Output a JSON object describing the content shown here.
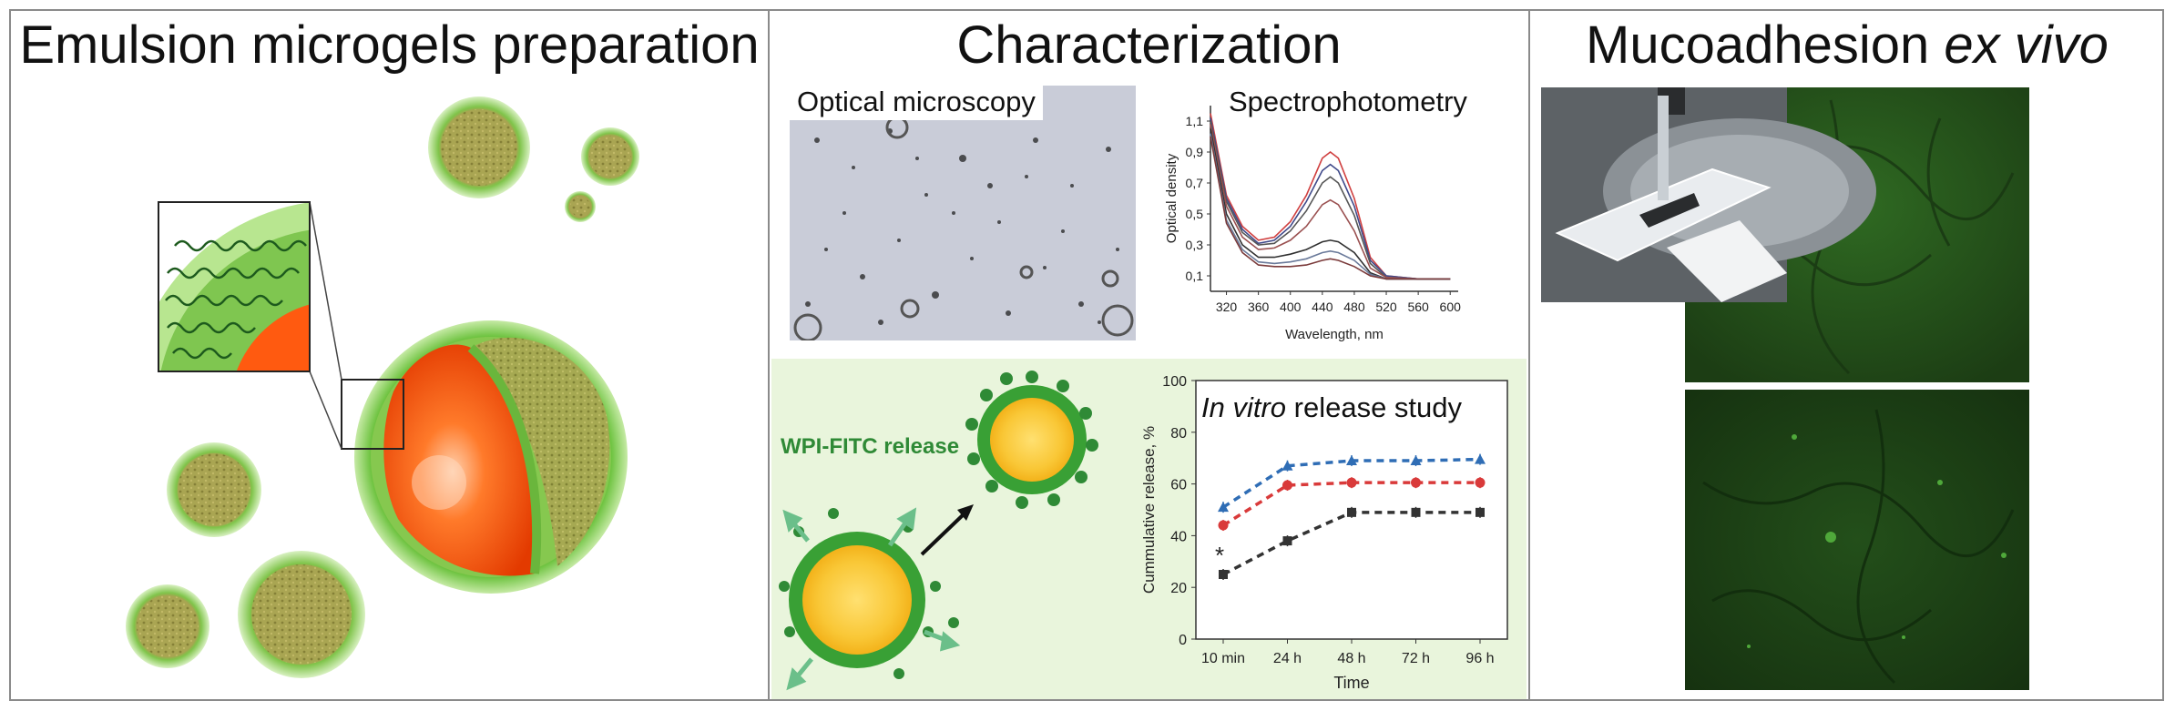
{
  "panels": {
    "left": {
      "title": "Emulsion microgels preparation"
    },
    "middle": {
      "title": "Characterization",
      "microscopy_label": "Optical microscopy",
      "spectro_label": "Spectrophotometry",
      "wpi_label": "WPI-FITC release",
      "release_title_italic": "In vitro",
      "release_title_rest": " release study"
    },
    "right": {
      "title_main": "Mucoadhesion ",
      "title_italic": "ex vivo"
    }
  },
  "chart_data": [
    {
      "type": "line",
      "title": "Spectrophotometry",
      "xlabel": "Wavelength, nm",
      "ylabel": "Optical density",
      "xticks": [
        "320",
        "360",
        "400",
        "440",
        "480",
        "520",
        "560",
        "600"
      ],
      "yticks": [
        "0,1",
        "0,3",
        "0,5",
        "0,7",
        "0,9",
        "1,1"
      ],
      "xlim": [
        300,
        610
      ],
      "ylim": [
        0,
        1.2
      ],
      "series": [
        {
          "color": "#d04040",
          "x": [
            300,
            320,
            340,
            360,
            380,
            400,
            420,
            440,
            450,
            460,
            480,
            500,
            520,
            560,
            600
          ],
          "y": [
            1.15,
            0.62,
            0.42,
            0.33,
            0.35,
            0.45,
            0.62,
            0.86,
            0.9,
            0.86,
            0.6,
            0.22,
            0.1,
            0.08,
            0.08
          ]
        },
        {
          "color": "#404a8a",
          "x": [
            300,
            320,
            340,
            360,
            380,
            400,
            420,
            440,
            450,
            460,
            480,
            500,
            520,
            560,
            600
          ],
          "y": [
            1.12,
            0.6,
            0.4,
            0.31,
            0.33,
            0.42,
            0.58,
            0.78,
            0.82,
            0.78,
            0.55,
            0.2,
            0.1,
            0.08,
            0.08
          ]
        },
        {
          "color": "#555555",
          "x": [
            300,
            320,
            340,
            360,
            380,
            400,
            420,
            440,
            450,
            460,
            480,
            500,
            520,
            560,
            600
          ],
          "y": [
            1.1,
            0.58,
            0.38,
            0.3,
            0.31,
            0.39,
            0.52,
            0.7,
            0.74,
            0.7,
            0.49,
            0.18,
            0.09,
            0.08,
            0.08
          ]
        },
        {
          "color": "#9a5050",
          "x": [
            300,
            320,
            340,
            360,
            380,
            400,
            420,
            440,
            450,
            460,
            480,
            500,
            520,
            560,
            600
          ],
          "y": [
            1.08,
            0.55,
            0.35,
            0.27,
            0.28,
            0.33,
            0.42,
            0.56,
            0.59,
            0.56,
            0.39,
            0.15,
            0.09,
            0.08,
            0.08
          ]
        },
        {
          "color": "#303030",
          "x": [
            300,
            320,
            340,
            360,
            380,
            400,
            420,
            440,
            450,
            460,
            480,
            500,
            520,
            560,
            600
          ],
          "y": [
            1.05,
            0.5,
            0.3,
            0.22,
            0.22,
            0.24,
            0.27,
            0.32,
            0.33,
            0.32,
            0.25,
            0.12,
            0.08,
            0.08,
            0.08
          ]
        },
        {
          "color": "#6a7a9a",
          "x": [
            300,
            320,
            340,
            360,
            380,
            400,
            420,
            440,
            450,
            460,
            480,
            500,
            520,
            560,
            600
          ],
          "y": [
            1.02,
            0.46,
            0.27,
            0.19,
            0.18,
            0.19,
            0.21,
            0.25,
            0.26,
            0.25,
            0.2,
            0.11,
            0.08,
            0.08,
            0.08
          ]
        },
        {
          "color": "#7a3a3a",
          "x": [
            300,
            320,
            340,
            360,
            380,
            400,
            420,
            440,
            450,
            460,
            480,
            500,
            520,
            560,
            600
          ],
          "y": [
            1.0,
            0.44,
            0.25,
            0.17,
            0.16,
            0.16,
            0.17,
            0.2,
            0.21,
            0.2,
            0.16,
            0.1,
            0.08,
            0.08,
            0.08
          ]
        }
      ]
    },
    {
      "type": "line",
      "title": "In vitro release study",
      "xlabel": "Time",
      "ylabel": "Cummulative release, %",
      "categories": [
        "10 min",
        "24 h",
        "48 h",
        "72 h",
        "96 h"
      ],
      "yticks": [
        "0",
        "20",
        "40",
        "60",
        "80",
        "100"
      ],
      "ylim": [
        0,
        100
      ],
      "annotation": "*",
      "series": [
        {
          "color": "#2f6db5",
          "marker": "triangle",
          "values": [
            51,
            67,
            69,
            69,
            69.5
          ]
        },
        {
          "color": "#d93a3a",
          "marker": "circle",
          "values": [
            44,
            59.5,
            60.5,
            60.5,
            60.5
          ]
        },
        {
          "color": "#333333",
          "marker": "square",
          "values": [
            25,
            38,
            49,
            49,
            49
          ]
        }
      ]
    }
  ]
}
